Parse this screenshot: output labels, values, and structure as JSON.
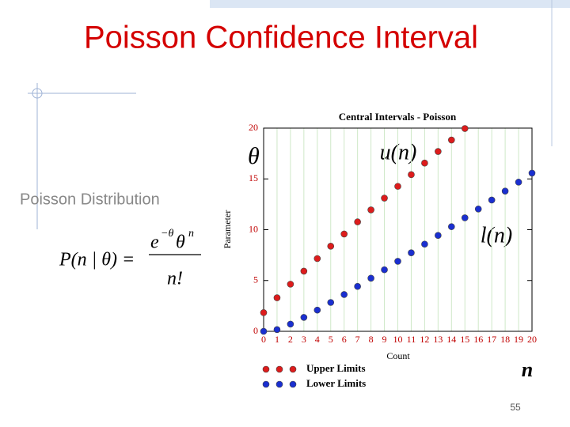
{
  "slide": {
    "title": "Poisson Confidence Interval",
    "subtitle": "Poisson Distribution",
    "page_number": "55",
    "formula": {
      "lhs": "P(n | θ) =",
      "base": "e",
      "exp": "−θ",
      "theta": "θ",
      "power": "n",
      "denominator": "n!"
    }
  },
  "chart_data": {
    "type": "scatter",
    "title": "Central Intervals - Poisson",
    "x_label": "Count",
    "y_label": "Parameter",
    "annotations": [
      "θ",
      "u(n)",
      "l(n)",
      "n"
    ],
    "xlim": [
      0,
      20
    ],
    "ylim": [
      0,
      20
    ],
    "xticks": [
      0,
      1,
      2,
      3,
      4,
      5,
      6,
      7,
      8,
      9,
      10,
      11,
      12,
      13,
      14,
      15,
      16,
      17,
      18,
      19,
      20
    ],
    "yticks": [
      0,
      5,
      10,
      15,
      20
    ],
    "grid": true,
    "series": [
      {
        "name": "Upper Limits",
        "color": "#dd1c1c",
        "x": [
          0,
          1,
          2,
          3,
          4,
          5,
          6,
          7,
          8,
          9,
          10,
          11,
          12,
          13,
          14,
          15
        ],
        "values": [
          1.84,
          3.3,
          4.64,
          5.92,
          7.16,
          8.38,
          9.58,
          10.77,
          11.95,
          13.11,
          14.27,
          15.42,
          16.56,
          17.7,
          18.83,
          19.96
        ]
      },
      {
        "name": "Lower Limits",
        "color": "#1a2fd0",
        "x": [
          0,
          1,
          2,
          3,
          4,
          5,
          6,
          7,
          8,
          9,
          10,
          11,
          12,
          13,
          14,
          15,
          16,
          17,
          18,
          19,
          20
        ],
        "values": [
          0,
          0.17,
          0.71,
          1.37,
          2.09,
          2.84,
          3.62,
          4.42,
          5.23,
          6.06,
          6.89,
          7.73,
          8.58,
          9.44,
          10.3,
          11.17,
          12.04,
          12.92,
          13.8,
          14.68,
          15.57
        ]
      }
    ]
  }
}
